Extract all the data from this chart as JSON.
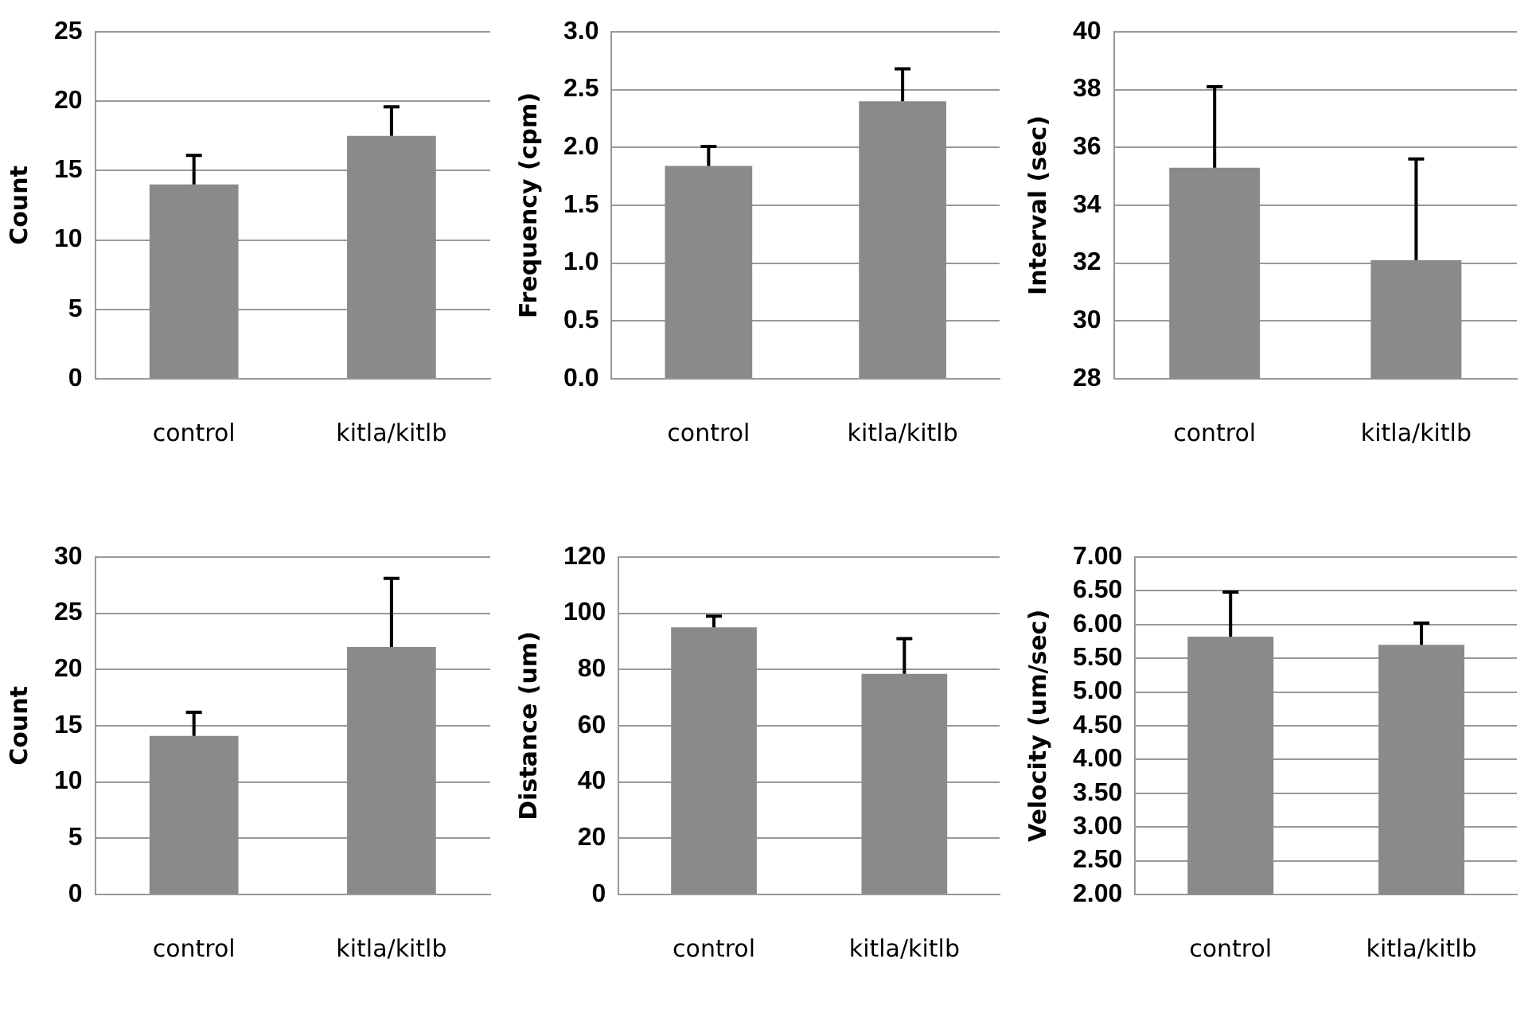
{
  "chart_data": [
    {
      "type": "bar",
      "ylabel": "Count",
      "categories": [
        "control",
        "kitla/kitlb"
      ],
      "values": [
        14,
        17.5
      ],
      "errors": [
        2.1,
        2.1
      ],
      "color": "#8a8a8a",
      "ylim": [
        0,
        25
      ],
      "yticks": [
        0,
        5,
        10,
        15,
        20,
        25
      ],
      "grid": "y"
    },
    {
      "type": "bar",
      "ylabel": "Frequency (cpm)",
      "categories": [
        "control",
        "kitla/kitlb"
      ],
      "values": [
        1.84,
        2.4
      ],
      "errors": [
        0.17,
        0.28
      ],
      "color": "#8a8a8a",
      "ylim": [
        0,
        3
      ],
      "yticks": [
        {
          "value": 0,
          "label": "0.0"
        },
        0.5,
        {
          "value": 1,
          "label": "1.0"
        },
        1.5,
        {
          "value": 2,
          "label": "2.0"
        },
        2.5,
        {
          "value": 3,
          "label": "3.0"
        }
      ],
      "grid": "y"
    },
    {
      "type": "bar",
      "ylabel": "Interval (sec)",
      "categories": [
        "control",
        "kitla/kitlb"
      ],
      "values": [
        35.3,
        32.1
      ],
      "errors": [
        2.8,
        3.5
      ],
      "color": "#8a8a8a",
      "ylim": [
        28,
        40
      ],
      "yticks": [
        28,
        30,
        32,
        34,
        36,
        38,
        40
      ],
      "grid": "y"
    },
    {
      "type": "bar",
      "ylabel": "Count",
      "categories": [
        "control",
        "kitla/kitlb"
      ],
      "values": [
        14.1,
        22
      ],
      "errors": [
        2.1,
        6.1
      ],
      "color": "#8a8a8a",
      "ylim": [
        0,
        30
      ],
      "yticks": [
        0,
        5,
        10,
        15,
        20,
        25,
        30
      ],
      "grid": "y"
    },
    {
      "type": "bar",
      "ylabel": "Distance (um)",
      "categories": [
        "control",
        "kitla/kitlb"
      ],
      "values": [
        95,
        78.5
      ],
      "errors": [
        4,
        12.5
      ],
      "color": "#8a8a8a",
      "ylim": [
        0,
        120
      ],
      "yticks": [
        0,
        20,
        40,
        60,
        80,
        100,
        120
      ],
      "grid": "y"
    },
    {
      "type": "bar",
      "ylabel": "Velocity (um/sec)",
      "categories": [
        "control",
        "kitla/kitlb"
      ],
      "values": [
        5.82,
        5.7
      ],
      "errors": [
        0.66,
        0.32
      ],
      "color": "#8a8a8a",
      "ylim": [
        2,
        7
      ],
      "yticks": [
        {
          "value": 2,
          "label": "2.00"
        },
        {
          "value": 2.5,
          "label": "2.50"
        },
        {
          "value": 3,
          "label": "3.00"
        },
        {
          "value": 3.5,
          "label": "3.50"
        },
        {
          "value": 4,
          "label": "4.00"
        },
        {
          "value": 4.5,
          "label": "4.50"
        },
        {
          "value": 5,
          "label": "5.00"
        },
        {
          "value": 5.5,
          "label": "5.50"
        },
        {
          "value": 6,
          "label": "6.00"
        },
        {
          "value": 6.5,
          "label": "6.50"
        },
        {
          "value": 7,
          "label": "7.00"
        }
      ],
      "grid": "y"
    }
  ]
}
